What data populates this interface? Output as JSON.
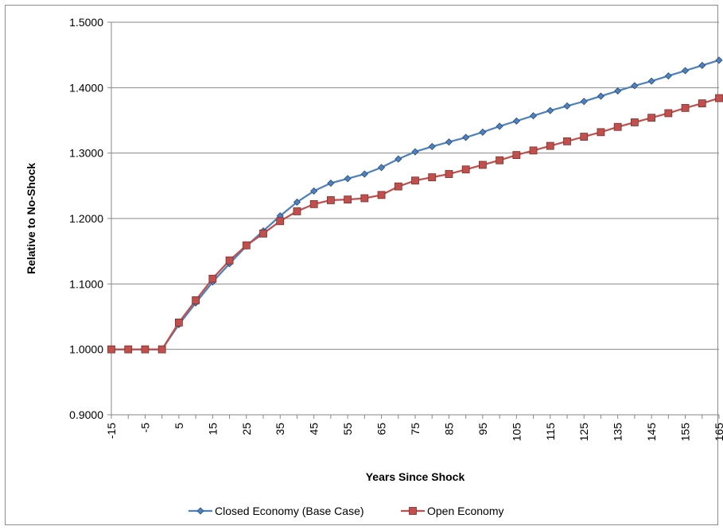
{
  "chart_data": {
    "type": "line",
    "title": "",
    "xlabel": "Years Since Shock",
    "ylabel": "Relative to No-Shock",
    "ylim": [
      0.9,
      1.5
    ],
    "yticks": [
      "0.9000",
      "1.0000",
      "1.1000",
      "1.2000",
      "1.3000",
      "1.4000",
      "1.5000"
    ],
    "xtick_labels": [
      "-15",
      "-5",
      "5",
      "15",
      "25",
      "35",
      "45",
      "55",
      "65",
      "75",
      "85",
      "95",
      "105",
      "115",
      "125",
      "135",
      "145",
      "155",
      "165"
    ],
    "x": [
      -15,
      -10,
      -5,
      0,
      5,
      10,
      15,
      20,
      25,
      30,
      35,
      40,
      45,
      50,
      55,
      60,
      65,
      70,
      75,
      80,
      85,
      90,
      95,
      100,
      105,
      110,
      115,
      120,
      125,
      130,
      135,
      140,
      145,
      150,
      155,
      160,
      165
    ],
    "grid": true,
    "legend_position": "bottom",
    "series": [
      {
        "name": "Closed Economy (Base Case)",
        "color": "#4f81bd",
        "marker": "diamond",
        "values": [
          1.0,
          1.0,
          1.0,
          1.0,
          1.038,
          1.071,
          1.103,
          1.131,
          1.158,
          1.181,
          1.204,
          1.225,
          1.242,
          1.254,
          1.261,
          1.268,
          1.278,
          1.291,
          1.302,
          1.31,
          1.317,
          1.324,
          1.332,
          1.341,
          1.349,
          1.357,
          1.365,
          1.372,
          1.379,
          1.387,
          1.395,
          1.403,
          1.41,
          1.418,
          1.426,
          1.434,
          1.442
        ]
      },
      {
        "name": "Open Economy",
        "color": "#c0504d",
        "marker": "square",
        "values": [
          1.0,
          1.0,
          1.0,
          1.0,
          1.041,
          1.075,
          1.108,
          1.136,
          1.159,
          1.177,
          1.196,
          1.211,
          1.222,
          1.228,
          1.229,
          1.231,
          1.236,
          1.249,
          1.258,
          1.263,
          1.268,
          1.275,
          1.282,
          1.289,
          1.297,
          1.304,
          1.311,
          1.318,
          1.325,
          1.332,
          1.34,
          1.347,
          1.354,
          1.361,
          1.369,
          1.376,
          1.384
        ]
      }
    ]
  }
}
